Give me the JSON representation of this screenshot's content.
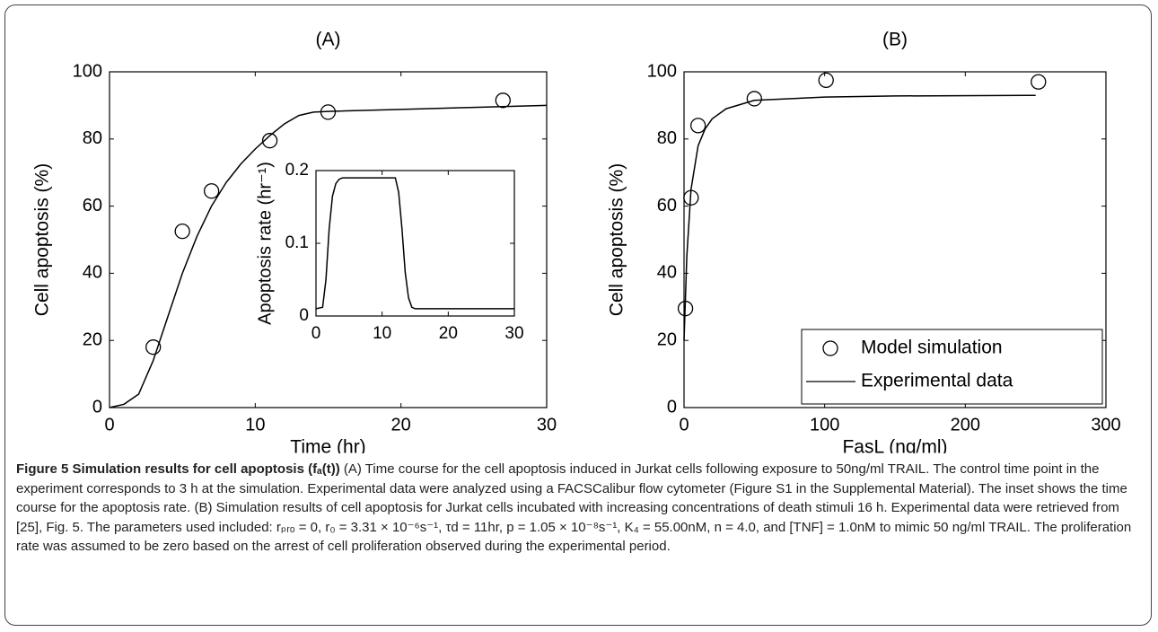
{
  "chart_data": [
    {
      "type": "line",
      "title": "(A)",
      "xlabel": "Time (hr)",
      "ylabel": "Cell apoptosis (%)",
      "xlim": [
        0,
        30
      ],
      "xticks": [
        0,
        10,
        20,
        30
      ],
      "ylim": [
        0,
        100
      ],
      "yticks": [
        0,
        20,
        40,
        60,
        80,
        100
      ],
      "series": [
        {
          "type": "line",
          "color": "#000000",
          "x": [
            0,
            1,
            2,
            3,
            4,
            5,
            6,
            7,
            8,
            9,
            10,
            11,
            12,
            13,
            14,
            15,
            20,
            25,
            30
          ],
          "values": [
            0,
            1,
            4,
            14,
            27,
            40,
            51,
            60,
            67,
            72.5,
            77,
            81,
            84.5,
            87,
            88,
            88.2,
            88.8,
            89.4,
            90
          ]
        },
        {
          "type": "scatter",
          "color": "#000000",
          "x": [
            3,
            5,
            7,
            11,
            15,
            27
          ],
          "values": [
            18,
            52.5,
            64.5,
            79.5,
            88,
            91.5
          ]
        }
      ]
    },
    {
      "type": "line",
      "ylabel": "Apoptosis rate (hr⁻¹)",
      "xlim": [
        0,
        30
      ],
      "xticks": [
        0,
        10,
        20,
        30
      ],
      "ylim": [
        0,
        0.2
      ],
      "yticks": [
        0,
        0.1,
        0.2
      ],
      "series": [
        {
          "type": "line",
          "color": "#000000",
          "x": [
            0,
            1,
            1.5,
            2,
            2.5,
            3,
            3.5,
            4,
            12,
            12.5,
            13,
            13.5,
            14,
            14.5,
            15,
            30
          ],
          "values": [
            0.01,
            0.012,
            0.05,
            0.12,
            0.165,
            0.182,
            0.188,
            0.19,
            0.19,
            0.17,
            0.12,
            0.06,
            0.025,
            0.012,
            0.01,
            0.01
          ]
        }
      ]
    },
    {
      "type": "line",
      "title": "(B)",
      "xlabel": "FasL (ng/ml)",
      "ylabel": "Cell apoptosis (%)",
      "xlim": [
        0,
        300
      ],
      "xticks": [
        0,
        100,
        200,
        300
      ],
      "ylim": [
        0,
        100
      ],
      "yticks": [
        0,
        20,
        40,
        60,
        80,
        100
      ],
      "legend": "lower right",
      "series": [
        {
          "name": "Model simulation",
          "type": "scatter",
          "color": "#000000",
          "x": [
            1,
            5,
            10,
            50,
            101,
            252
          ],
          "values": [
            29.5,
            62.5,
            84,
            92,
            97.5,
            97
          ]
        },
        {
          "name": "Experimental data",
          "type": "line",
          "color": "#000000",
          "x": [
            0,
            2,
            5,
            10,
            15,
            20,
            30,
            50,
            100,
            150,
            250
          ],
          "values": [
            20,
            45,
            65,
            78,
            83,
            86,
            89,
            91.5,
            92.5,
            92.8,
            93
          ]
        }
      ]
    }
  ],
  "caption": {
    "label": "Figure 5",
    "title": "Simulation results for cell apoptosis (fₐ(t))",
    "text": "(A) Time course for the cell apoptosis induced in Jurkat cells following exposure to 50ng/ml TRAIL. The control time point in the experiment corresponds to 3 h at the simulation. Experimental data were analyzed using a FACSCalibur flow cytometer (Figure S1 in the Supplemental Material). The inset shows the time course for the apoptosis rate. (B) Simulation results of cell apoptosis for Jurkat cells incubated with increasing concentrations of death stimuli 16 h. Experimental data were retrieved from [25], Fig. 5. The parameters used included: rₚᵣₒ = 0, r₀ = 3.31 × 10⁻⁶s⁻¹, τd = 11hr, p = 1.05 × 10⁻⁸s⁻¹, K₄ = 55.00nM, n = 4.0, and [TNF] = 1.0nM to mimic 50 ng/ml TRAIL. The proliferation rate was assumed to be zero based on the arrest of cell proliferation observed during the experimental period."
  }
}
